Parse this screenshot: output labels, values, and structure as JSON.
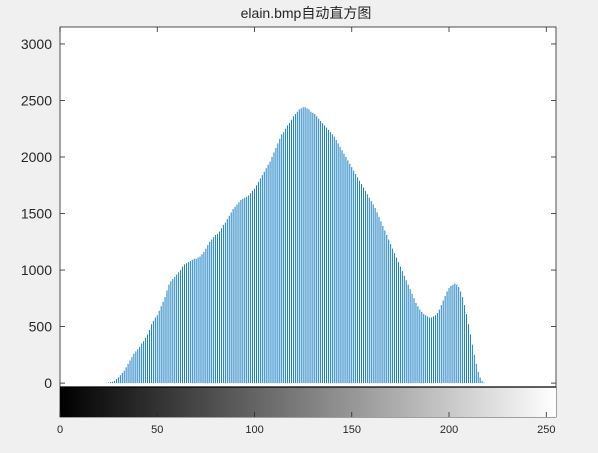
{
  "window": {
    "background": "#f0f0f0"
  },
  "chart_data": {
    "type": "bar",
    "title": "elain.bmp自动直方图",
    "xlabel": "",
    "ylabel": "",
    "xlim": [
      0,
      255
    ],
    "ylim": [
      -300,
      3150
    ],
    "yticks": [
      0,
      500,
      1000,
      1500,
      2000,
      2500,
      3000
    ],
    "xticks": [
      0,
      50,
      100,
      150,
      200,
      250
    ],
    "grid": false,
    "bar_color": "#0072bd",
    "colorbar": {
      "type": "grayscale",
      "from": 0,
      "to": 255
    },
    "series": [
      {
        "name": "",
        "x_start": 0,
        "values": [
          0,
          0,
          0,
          0,
          0,
          0,
          0,
          0,
          0,
          0,
          0,
          0,
          0,
          0,
          0,
          0,
          0,
          0,
          0,
          0,
          0,
          0,
          0,
          0,
          2,
          5,
          8,
          12,
          20,
          35,
          50,
          70,
          90,
          110,
          140,
          170,
          200,
          230,
          260,
          280,
          300,
          320,
          350,
          370,
          400,
          430,
          470,
          520,
          550,
          580,
          600,
          640,
          680,
          720,
          760,
          820,
          870,
          900,
          920,
          940,
          960,
          980,
          1000,
          1030,
          1050,
          1060,
          1070,
          1080,
          1090,
          1100,
          1100,
          1110,
          1120,
          1140,
          1160,
          1190,
          1220,
          1250,
          1270,
          1290,
          1310,
          1320,
          1340,
          1370,
          1400,
          1420,
          1450,
          1480,
          1510,
          1540,
          1560,
          1580,
          1600,
          1620,
          1630,
          1640,
          1650,
          1660,
          1680,
          1700,
          1720,
          1750,
          1780,
          1810,
          1840,
          1870,
          1900,
          1930,
          1960,
          2000,
          2040,
          2080,
          2120,
          2160,
          2200,
          2220,
          2250,
          2280,
          2300,
          2330,
          2360,
          2380,
          2400,
          2420,
          2430,
          2440,
          2440,
          2430,
          2420,
          2400,
          2390,
          2380,
          2360,
          2340,
          2320,
          2300,
          2280,
          2260,
          2240,
          2220,
          2200,
          2180,
          2150,
          2120,
          2090,
          2060,
          2030,
          2000,
          1970,
          1940,
          1910,
          1880,
          1850,
          1820,
          1790,
          1760,
          1730,
          1700,
          1670,
          1640,
          1610,
          1580,
          1550,
          1510,
          1470,
          1430,
          1390,
          1350,
          1310,
          1270,
          1230,
          1190,
          1150,
          1110,
          1070,
          1030,
          990,
          950,
          910,
          870,
          830,
          790,
          750,
          710,
          680,
          650,
          630,
          610,
          600,
          590,
          580,
          580,
          590,
          600,
          620,
          650,
          690,
          730,
          770,
          810,
          840,
          860,
          870,
          880,
          870,
          850,
          810,
          760,
          690,
          610,
          520,
          430,
          340,
          250,
          170,
          100,
          50,
          20,
          5,
          0,
          0,
          0,
          0,
          0,
          0,
          0,
          0,
          0,
          0,
          0,
          0,
          0,
          0,
          0,
          0,
          0
        ]
      }
    ]
  }
}
